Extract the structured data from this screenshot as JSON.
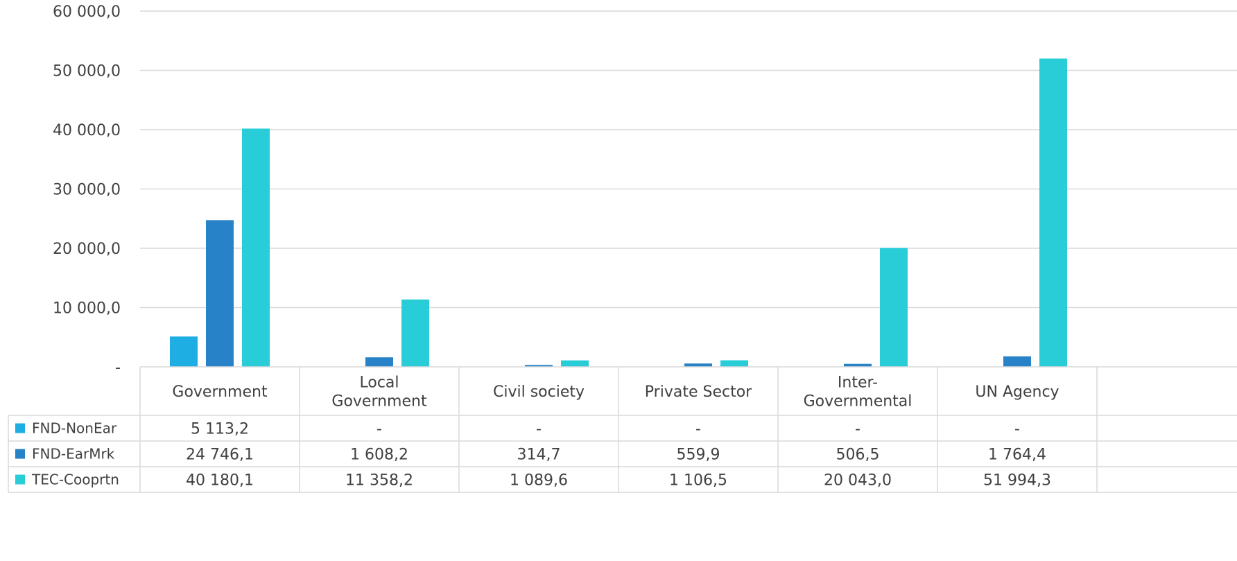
{
  "chart_data": {
    "type": "bar",
    "title": "",
    "xlabel": "",
    "ylabel": "",
    "ylim": [
      0,
      60000
    ],
    "yticks": [
      {
        "value": 0,
        "label": "-"
      },
      {
        "value": 10000,
        "label": "10 000,0"
      },
      {
        "value": 20000,
        "label": "20 000,0"
      },
      {
        "value": 30000,
        "label": "30 000,0"
      },
      {
        "value": 40000,
        "label": "40 000,0"
      },
      {
        "value": 50000,
        "label": "50 000,0"
      },
      {
        "value": 60000,
        "label": "60 000,0"
      }
    ],
    "grid": true,
    "legend": "data-table",
    "categories": [
      [
        "Government"
      ],
      [
        "Local",
        "Government"
      ],
      [
        "Civil society"
      ],
      [
        "Private Sector"
      ],
      [
        "Inter-",
        "Governmental"
      ],
      [
        "UN Agency"
      ]
    ],
    "series": [
      {
        "name": "FND-NonEar",
        "color": "#1eaee4",
        "values": [
          5113.2,
          0,
          0,
          0,
          0,
          0
        ],
        "labels": [
          "5 113,2",
          "-",
          "-",
          "-",
          "-",
          "-"
        ]
      },
      {
        "name": "FND-EarMrk",
        "color": "#2782c7",
        "values": [
          24746.1,
          1608.2,
          314.7,
          559.9,
          506.5,
          1764.4
        ],
        "labels": [
          "24 746,1",
          "1 608,2",
          "314,7",
          "559,9",
          "506,5",
          "1 764,4"
        ]
      },
      {
        "name": "TEC-Cooprtn",
        "color": "#28cdd8",
        "values": [
          40180.1,
          11358.2,
          1089.6,
          1106.5,
          20043.0,
          51994.3
        ],
        "labels": [
          "40 180,1",
          "11 358,2",
          "1 089,6",
          "1 106,5",
          "20 043,0",
          "51 994,3"
        ]
      }
    ]
  }
}
